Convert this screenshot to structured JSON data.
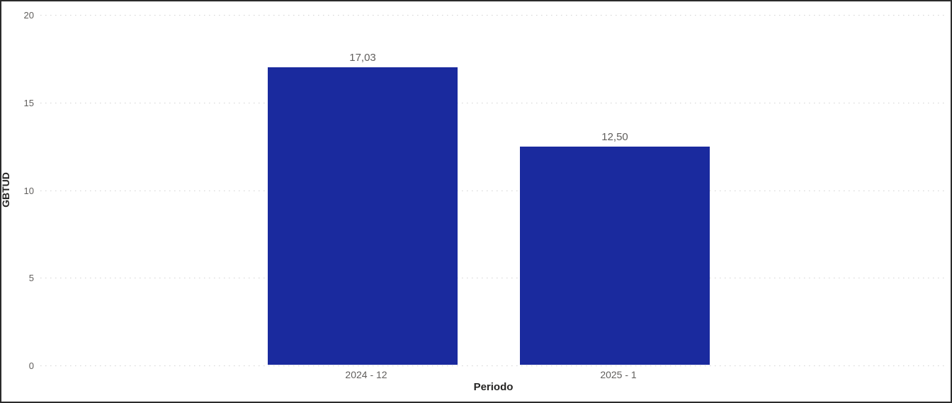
{
  "chart_data": {
    "type": "bar",
    "categories": [
      "2024 - 12",
      "2025 - 1"
    ],
    "values": [
      17.03,
      12.5
    ],
    "value_labels": [
      "17,03",
      "12,50"
    ],
    "title": "",
    "xlabel": "Periodo",
    "ylabel": "GBTUD",
    "ylim": [
      0,
      20
    ],
    "yticks": [
      0,
      5,
      10,
      15,
      20
    ],
    "grid": "horizontal-dotted",
    "legend": "none"
  },
  "colors": {
    "bar": "#1a2a9e",
    "gridline": "#d2d2d2",
    "tick_label": "#605e5c",
    "data_label": "#605e5c",
    "axis_title": "#252423",
    "background": "#ffffff",
    "frame_border": "#2b2b2b"
  }
}
